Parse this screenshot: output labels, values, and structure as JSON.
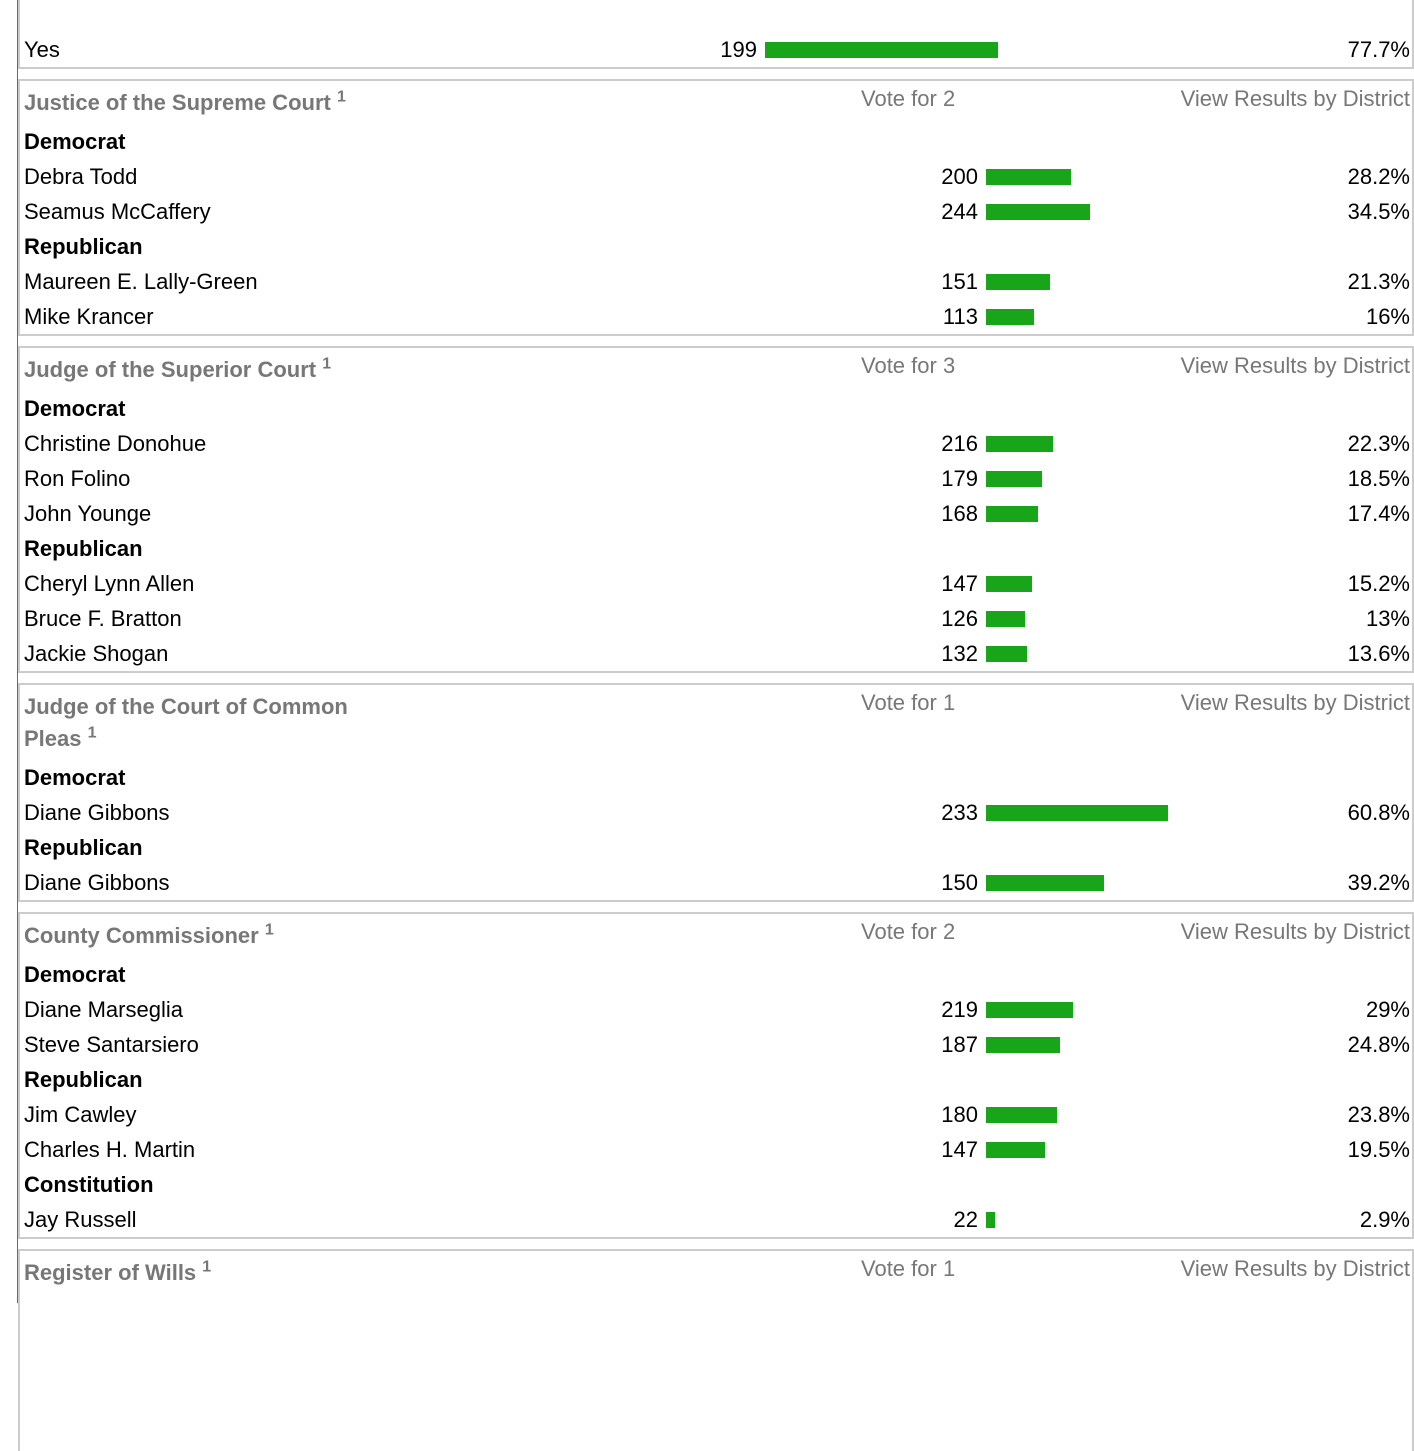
{
  "top_row": {
    "name": "Yes",
    "votes": 199,
    "percent": 77.7,
    "percent_label": "77.7%"
  },
  "races": [
    {
      "title": "Justice of the Supreme Court",
      "footnote": "1",
      "vote_for": "Vote for 2",
      "link": "View Results by District",
      "groups": [
        {
          "party": "Democrat",
          "candidates": [
            {
              "name": "Debra Todd",
              "votes": 200,
              "percent": 28.2,
              "percent_label": "28.2%"
            },
            {
              "name": "Seamus McCaffery",
              "votes": 244,
              "percent": 34.5,
              "percent_label": "34.5%"
            }
          ]
        },
        {
          "party": "Republican",
          "candidates": [
            {
              "name": "Maureen E. Lally-Green",
              "votes": 151,
              "percent": 21.3,
              "percent_label": "21.3%"
            },
            {
              "name": "Mike Krancer",
              "votes": 113,
              "percent": 16,
              "percent_label": "16%"
            }
          ]
        }
      ]
    },
    {
      "title": "Judge of the Superior Court",
      "footnote": "1",
      "vote_for": "Vote for 3",
      "link": "View Results by District",
      "groups": [
        {
          "party": "Democrat",
          "candidates": [
            {
              "name": "Christine Donohue",
              "votes": 216,
              "percent": 22.3,
              "percent_label": "22.3%"
            },
            {
              "name": "Ron Folino",
              "votes": 179,
              "percent": 18.5,
              "percent_label": "18.5%"
            },
            {
              "name": "John Younge",
              "votes": 168,
              "percent": 17.4,
              "percent_label": "17.4%"
            }
          ]
        },
        {
          "party": "Republican",
          "candidates": [
            {
              "name": "Cheryl Lynn Allen",
              "votes": 147,
              "percent": 15.2,
              "percent_label": "15.2%"
            },
            {
              "name": "Bruce F. Bratton",
              "votes": 126,
              "percent": 13,
              "percent_label": "13%"
            },
            {
              "name": "Jackie Shogan",
              "votes": 132,
              "percent": 13.6,
              "percent_label": "13.6%"
            }
          ]
        }
      ]
    },
    {
      "title": "Judge of the Court of Common Pleas",
      "footnote": "1",
      "vote_for": "Vote for 1",
      "link": "View Results by District",
      "groups": [
        {
          "party": "Democrat",
          "candidates": [
            {
              "name": "Diane Gibbons",
              "votes": 233,
              "percent": 60.8,
              "percent_label": "60.8%"
            }
          ]
        },
        {
          "party": "Republican",
          "candidates": [
            {
              "name": "Diane Gibbons",
              "votes": 150,
              "percent": 39.2,
              "percent_label": "39.2%"
            }
          ]
        }
      ]
    },
    {
      "title": "County Commissioner",
      "footnote": "1",
      "vote_for": "Vote for 2",
      "link": "View Results by District",
      "groups": [
        {
          "party": "Democrat",
          "candidates": [
            {
              "name": "Diane Marseglia",
              "votes": 219,
              "percent": 29,
              "percent_label": "29%"
            },
            {
              "name": "Steve Santarsiero",
              "votes": 187,
              "percent": 24.8,
              "percent_label": "24.8%"
            }
          ]
        },
        {
          "party": "Republican",
          "candidates": [
            {
              "name": "Jim Cawley",
              "votes": 180,
              "percent": 23.8,
              "percent_label": "23.8%"
            },
            {
              "name": "Charles H. Martin",
              "votes": 147,
              "percent": 19.5,
              "percent_label": "19.5%"
            }
          ]
        },
        {
          "party": "Constitution",
          "candidates": [
            {
              "name": "Jay Russell",
              "votes": 22,
              "percent": 2.9,
              "percent_label": "2.9%"
            }
          ]
        }
      ]
    },
    {
      "title": "Register of Wills",
      "footnote": "1",
      "vote_for": "Vote for 1",
      "link": "View Results by District",
      "groups": []
    }
  ]
}
